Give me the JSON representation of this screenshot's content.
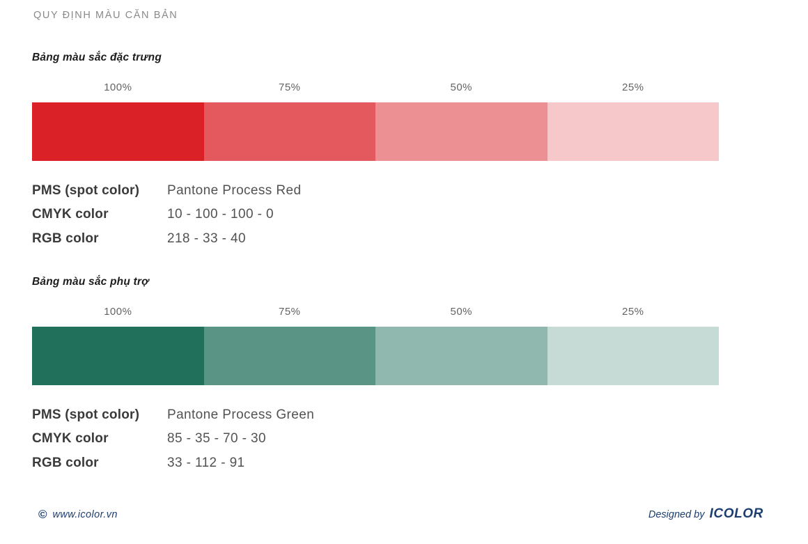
{
  "page": {
    "title": "QUY ĐỊNH MÀU CĂN BẢN"
  },
  "sections": [
    {
      "subtitle": "Bảng màu sắc đặc trưng",
      "tints": [
        {
          "label": "100%",
          "color": "#DA2128"
        },
        {
          "label": "75%",
          "color": "#E3595E"
        },
        {
          "label": "50%",
          "color": "#ED9094"
        },
        {
          "label": "25%",
          "color": "#F6C8C9"
        }
      ],
      "specs": [
        {
          "label": "PMS (spot color)",
          "value": "Pantone Process Red"
        },
        {
          "label": "CMYK color",
          "value": "10 - 100 - 100 - 0"
        },
        {
          "label": "RGB color",
          "value": "218 - 33 - 40"
        }
      ]
    },
    {
      "subtitle": "Bảng màu sắc phụ trợ",
      "tints": [
        {
          "label": "100%",
          "color": "#21705B"
        },
        {
          "label": "75%",
          "color": "#599484"
        },
        {
          "label": "50%",
          "color": "#90B8AE"
        },
        {
          "label": "25%",
          "color": "#C7DBD6"
        }
      ],
      "specs": [
        {
          "label": "PMS (spot color)",
          "value": "Pantone Process Green"
        },
        {
          "label": "CMYK color",
          "value": "85 - 35 - 70 - 30"
        },
        {
          "label": "RGB color",
          "value": "33 - 112 - 91"
        }
      ]
    }
  ],
  "footer": {
    "copyright_symbol": "©",
    "website": "www.icolor.vn",
    "designed_by": "Designed by",
    "brand": "ICOLOR",
    "text_color": "#1C3E6E"
  }
}
